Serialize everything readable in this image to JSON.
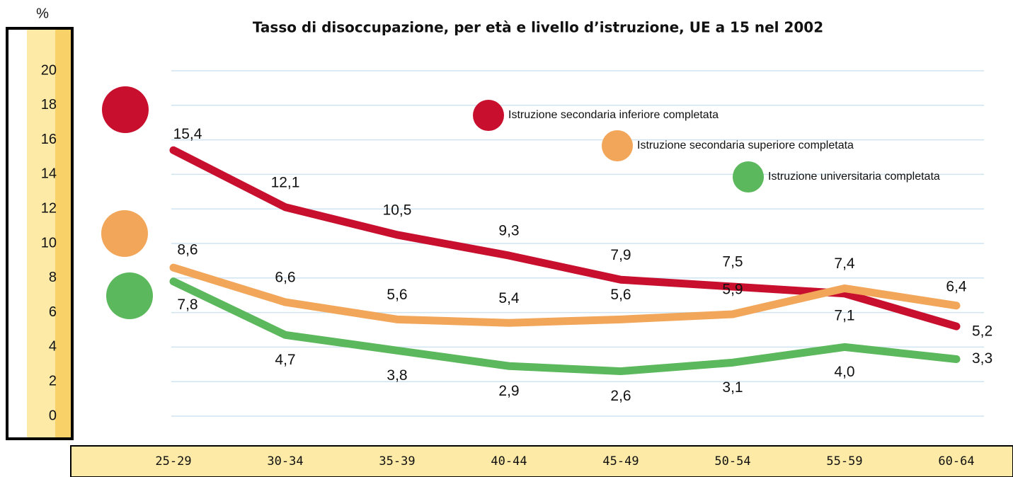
{
  "chart_data": {
    "type": "line",
    "title": "Tasso di disoccupazione, per età e livello d’istruzione, UE a 15 nel 2002",
    "y_label": "%",
    "categories": [
      "25-29",
      "30-34",
      "35-39",
      "40-44",
      "45-49",
      "50-54",
      "55-59",
      "60-64"
    ],
    "series": [
      {
        "name": "Istruzione secondaria inferiore completata",
        "color": "#c8102e",
        "values": [
          15.4,
          12.1,
          10.5,
          9.3,
          7.9,
          7.5,
          7.1,
          5.2
        ],
        "value_labels": [
          "15,4",
          "12,1",
          "10,5",
          "9,3",
          "7,9",
          "7,5",
          "7,1",
          "5,2"
        ]
      },
      {
        "name": "Istruzione secondaria superiore completata",
        "color": "#f2a65a",
        "values": [
          8.6,
          6.6,
          5.6,
          5.4,
          5.6,
          5.9,
          7.4,
          6.4
        ],
        "value_labels": [
          "8,6",
          "6,6",
          "5,6",
          "5,4",
          "5,6",
          "5,9",
          "7,4",
          "6,4"
        ]
      },
      {
        "name": "Istruzione universitaria completata",
        "color": "#5cb85c",
        "values": [
          7.8,
          4.7,
          3.8,
          2.9,
          2.6,
          3.1,
          4.0,
          3.3
        ],
        "value_labels": [
          "7,8",
          "4,7",
          "3,8",
          "2,9",
          "2,6",
          "3,1",
          "4,0",
          "3,3"
        ]
      }
    ],
    "ylim": [
      0,
      20
    ],
    "yticks": [
      0,
      2,
      4,
      6,
      8,
      10,
      12,
      14,
      16,
      18,
      20
    ],
    "grid": true
  }
}
